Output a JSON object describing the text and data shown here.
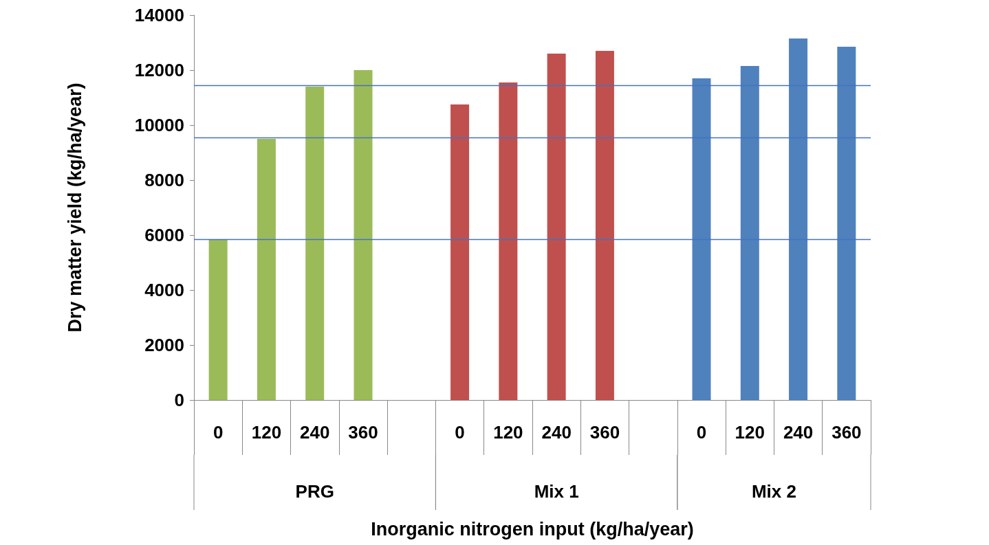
{
  "chart_data": {
    "type": "bar",
    "xlabel": "Inorganic nitrogen input (kg/ha/year)",
    "ylabel": "Dry matter yield (kg/ha/year)",
    "categories": [
      "0",
      "120",
      "240",
      "360",
      null,
      "0",
      "120",
      "240",
      "360",
      null,
      "0",
      "120",
      "240",
      "360"
    ],
    "series": [
      {
        "color": "#9bbb59",
        "values": [
          5850,
          9500,
          11400,
          12000,
          null,
          null,
          null,
          null,
          null,
          null,
          null,
          null,
          null,
          null
        ]
      },
      {
        "color": "#c0504d",
        "values": [
          null,
          null,
          null,
          null,
          null,
          10750,
          11550,
          12600,
          12700,
          null,
          null,
          null,
          null,
          null
        ]
      },
      {
        "color": "#4f81bd",
        "values": [
          null,
          null,
          null,
          null,
          null,
          null,
          null,
          null,
          null,
          null,
          11700,
          12150,
          13150,
          12850
        ]
      }
    ],
    "ylim": [
      0,
      14000
    ],
    "yticks": [
      0,
      2000,
      4000,
      6000,
      8000,
      10000,
      12000,
      14000
    ],
    "grid": false,
    "annotations": [
      "PRG",
      "Mix 1",
      "Mix 2"
    ],
    "ref_lines": [
      {
        "axis": "y",
        "value": 11450,
        "color": "#4472c4"
      },
      {
        "axis": "y",
        "value": 9550,
        "color": "#4472c4"
      },
      {
        "axis": "y",
        "value": 5850,
        "color": "#4472c4"
      }
    ]
  }
}
